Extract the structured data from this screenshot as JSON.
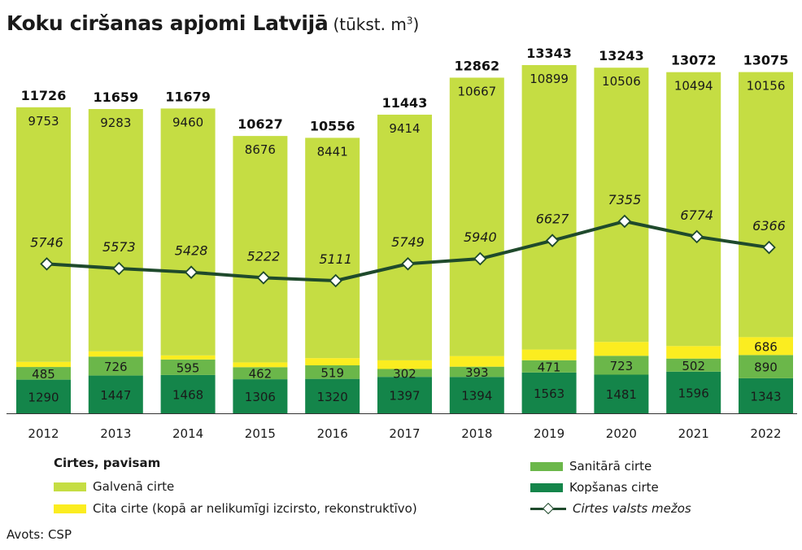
{
  "header": {
    "title": "Koku ciršanas apjomi Latvijā",
    "unit_prefix": "(tūkst. m",
    "unit_sup": "3",
    "unit_suffix": ")"
  },
  "legend": {
    "heading": "Cirtes, pavisam",
    "galvena": "Galvenā cirte",
    "cita": "Cita cirte (kopā ar nelikumīgi izcirsto, rekonstruktīvo)",
    "sanitara": "Sanitārā cirte",
    "kopsanas": "Kopšanas cirte",
    "valsts": "Cirtes valsts mežos"
  },
  "source": "Avots: CSP",
  "colors": {
    "galvena": "#c5dd43",
    "cita": "#fbed20",
    "sanitara": "#6bb74a",
    "kopsanas": "#14854a",
    "line": "#1f4a2c"
  },
  "chart_data": {
    "type": "bar",
    "stacked": true,
    "categories": [
      "2012",
      "2013",
      "2014",
      "2015",
      "2016",
      "2017",
      "2018",
      "2019",
      "2020",
      "2021",
      "2022"
    ],
    "series": [
      {
        "name": "Kopšanas cirte",
        "key": "kopsanas",
        "values": [
          1290,
          1447,
          1468,
          1306,
          1320,
          1397,
          1394,
          1563,
          1481,
          1596,
          1343
        ]
      },
      {
        "name": "Sanitārā cirte",
        "key": "sanitara",
        "values": [
          485,
          726,
          595,
          462,
          519,
          302,
          393,
          471,
          723,
          502,
          890
        ]
      },
      {
        "name": "Cita cirte (kopā ar nelikumīgi izcirsto, rekonstruktīvo)",
        "key": "cita",
        "values": [
          198,
          203,
          156,
          183,
          276,
          330,
          407,
          410,
          533,
          480,
          686
        ]
      },
      {
        "name": "Galvenā cirte",
        "key": "galvena",
        "values": [
          9753,
          9283,
          9460,
          8676,
          8441,
          9414,
          10667,
          10899,
          10506,
          10494,
          10156
        ]
      }
    ],
    "totals": [
      11726,
      11659,
      11679,
      10627,
      10556,
      11443,
      12862,
      13343,
      13243,
      13072,
      13075
    ],
    "line": {
      "name": "Cirtes valsts mežos",
      "values": [
        5746,
        5573,
        5428,
        5222,
        5111,
        5749,
        5940,
        6627,
        7355,
        6774,
        6366
      ]
    },
    "ylim": [
      0,
      13343
    ]
  }
}
